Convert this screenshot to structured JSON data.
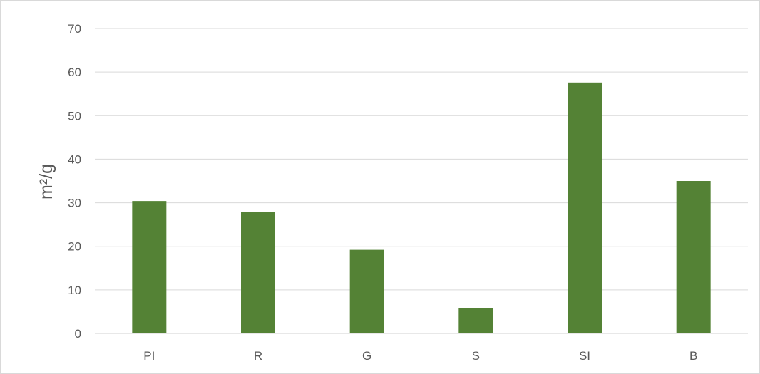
{
  "chart_data": {
    "type": "bar",
    "title": "",
    "xlabel": "",
    "ylabel": "m²/g",
    "categories": [
      "PI",
      "R",
      "G",
      "S",
      "SI",
      "B"
    ],
    "values": [
      30.4,
      27.9,
      19.2,
      5.8,
      57.6,
      35.0
    ],
    "ylim": [
      0,
      70
    ],
    "yticks": [
      0,
      10,
      20,
      30,
      40,
      50,
      60,
      70
    ],
    "grid": true,
    "legend": "none",
    "bar_color": "#548235",
    "grid_color": "#d9d9d9",
    "text_color": "#595959"
  }
}
